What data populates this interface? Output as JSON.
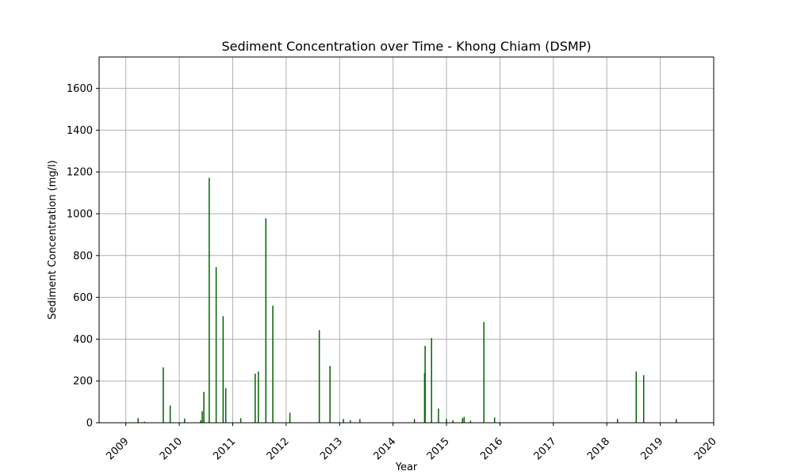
{
  "chart_data": {
    "type": "bar",
    "title": "Sediment Concentration over Time - Khong Chiam (DSMP)",
    "xlabel": "Year",
    "ylabel": "Sediment Concentration (mg/l)",
    "xlim": [
      2008.5,
      2020.0
    ],
    "ylim": [
      0,
      1750
    ],
    "grid": true,
    "bar_color": "#006400",
    "x_ticks": [
      "2009",
      "2010",
      "2011",
      "2012",
      "2013",
      "2014",
      "2015",
      "2016",
      "2017",
      "2018",
      "2019",
      "2020"
    ],
    "y_ticks": [
      "0",
      "200",
      "400",
      "600",
      "800",
      "1000",
      "1200",
      "1400",
      "1600"
    ],
    "series": [
      {
        "x": [
          2009.23,
          2009.35,
          2009.7,
          2009.83,
          2010.1,
          2010.4,
          2010.43,
          2010.46,
          2010.56,
          2010.69,
          2010.82,
          2010.87,
          2011.15,
          2011.42,
          2011.48,
          2011.62,
          2011.75,
          2012.07,
          2012.62,
          2012.82,
          2013.07,
          2013.2,
          2013.38,
          2014.4,
          2014.59,
          2014.6,
          2014.72,
          2014.85,
          2015.0,
          2015.12,
          2015.3,
          2015.33,
          2015.45,
          2015.7,
          2015.9,
          2018.2,
          2018.55,
          2018.69,
          2019.3
        ],
        "values": [
          22,
          5,
          265,
          82,
          20,
          12,
          55,
          148,
          1172,
          745,
          510,
          165,
          22,
          235,
          245,
          978,
          560,
          48,
          443,
          272,
          18,
          12,
          18,
          18,
          238,
          368,
          405,
          68,
          18,
          12,
          22,
          28,
          10,
          482,
          25,
          18,
          245,
          228,
          18
        ]
      }
    ]
  }
}
